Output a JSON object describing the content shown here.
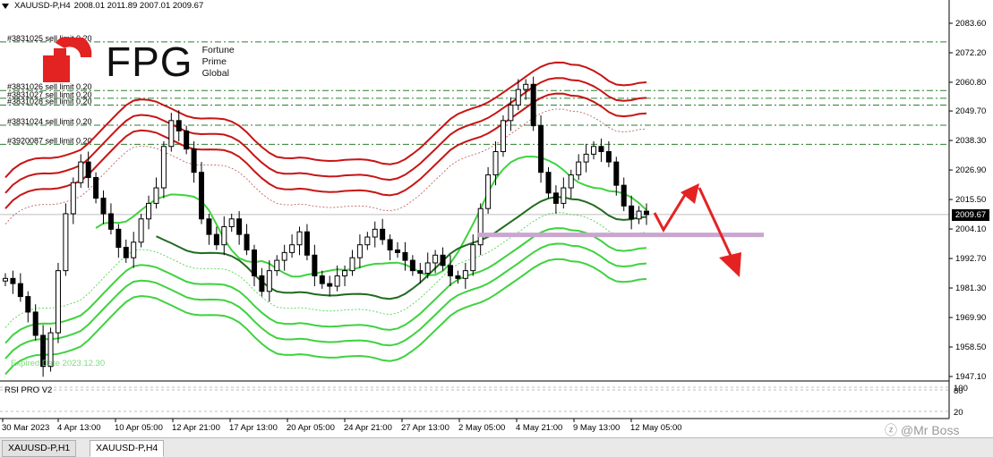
{
  "header": {
    "symbol": "XAUUSD-P,H4",
    "ohlc": "2008.01 2011.89 2007.01 2009.67"
  },
  "logo": {
    "brand": "FPG",
    "line1": "Fortune",
    "line2": "Prime",
    "line3": "Global"
  },
  "orders": [
    {
      "label": "#3831025 sell limit 0.20",
      "price": 2076.4
    },
    {
      "label": "#3831026 sell limit 0.20",
      "price": 2057.6
    },
    {
      "label": "#3831027 sell limit 0.20",
      "price": 2054.6
    },
    {
      "label": "#3831028 sell limit 0.20",
      "price": 2052.0
    },
    {
      "label": "#3831024 sell limit 0.20",
      "price": 2044.2
    },
    {
      "label": "#3920087 sell limit 0.20",
      "price": 2036.8
    }
  ],
  "expired_text": "Expired Date 2023.12.30",
  "current_price": "2009.67",
  "rsi_label": "RSI PRO V2",
  "rsi_ticks": [
    "100",
    "80",
    "20"
  ],
  "watermark": "ⓩ @Mr Boss",
  "tabs": [
    {
      "label": "XAUUSD-P,H1",
      "active": false
    },
    {
      "label": "XAUUSD-P,H4",
      "active": true
    }
  ],
  "colors": {
    "bull": "#000000",
    "upper_band": "#c81414",
    "lower_band": "#3fd23f",
    "ma_fast": "#3fd23f",
    "ma_slow": "#1f6b1f",
    "support_zone": "#c9a6cf",
    "arrow": "#e52222"
  },
  "chart_data": {
    "type": "candlestick",
    "symbol": "XAUUSD-P",
    "timeframe": "H4",
    "ylim": [
      1947.1,
      2083.6
    ],
    "y_ticks": [
      "2083.60",
      "2072.20",
      "2060.80",
      "2049.70",
      "2038.30",
      "2026.90",
      "2015.50",
      "2004.10",
      "1992.70",
      "1981.30",
      "1969.90",
      "1958.50",
      "1947.10"
    ],
    "x_ticks": [
      "30 Mar 2023",
      "4 Apr 13:00",
      "10 Apr 05:00",
      "12 Apr 21:00",
      "17 Apr 13:00",
      "20 Apr 05:00",
      "24 Apr 21:00",
      "27 Apr 13:00",
      "2 May 05:00",
      "4 May 21:00",
      "9 May 13:00",
      "12 May 05:00"
    ],
    "support_zone_price": 2002.0,
    "current_price": 2009.67,
    "path": [
      1985,
      1983,
      1978,
      1972,
      1963,
      1951,
      1964,
      1988,
      2010,
      2022,
      2030,
      2024,
      2016,
      2010,
      2004,
      1997,
      1993,
      1999,
      2008,
      2014,
      2020,
      2036,
      2046,
      2042,
      2035,
      2026,
      2008,
      2002,
      1998,
      2005,
      2008,
      2002,
      1996,
      1986,
      1980,
      1988,
      1992,
      1995,
      1998,
      2003,
      1994,
      1986,
      1983,
      1982,
      1986,
      1988,
      1993,
      1998,
      2001,
      2004,
      2000,
      1996,
      1995,
      1992,
      1988,
      1987,
      1991,
      1994,
      1990,
      1986,
      1985,
      1988,
      1998,
      2012,
      2025,
      2034,
      2046,
      2052,
      2058,
      2060,
      2044,
      2026,
      2018,
      2014,
      2020,
      2025,
      2030,
      2033,
      2036,
      2034,
      2030,
      2021,
      2013,
      2008,
      2011,
      2009.67
    ]
  }
}
